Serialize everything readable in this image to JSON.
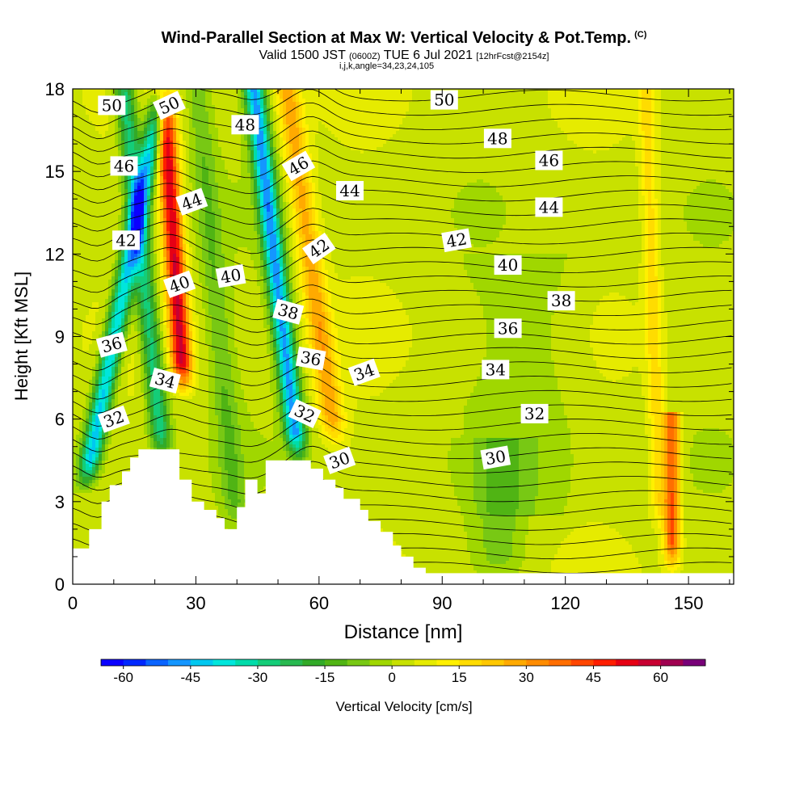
{
  "title": {
    "main": "Wind-Parallel Section at Max W: Vertical Velocity & Pot.Temp.",
    "main_unit": "(C)",
    "valid_prefix": "Valid 1500 JST",
    "valid_z": "(0600Z)",
    "valid_date": "TUE 6 Jul 2021",
    "forecast": "[12hrFcst@2154z]",
    "indices": "i,j,k,angle=34,23,24,105"
  },
  "chart_data": {
    "type": "heatmap",
    "xlabel": "Distance [nm]",
    "ylabel": "Height [Kft MSL]",
    "xlim": [
      0,
      161
    ],
    "ylim": [
      0,
      18
    ],
    "x_ticks": [
      0,
      30,
      60,
      90,
      120,
      150
    ],
    "y_ticks": [
      0,
      3,
      6,
      9,
      12,
      15,
      18
    ],
    "colorbar": {
      "label": "Vertical Velocity [cm/s]",
      "ticks": [
        -60,
        -45,
        -30,
        -15,
        0,
        15,
        30,
        45,
        60
      ],
      "min": -65,
      "max": 70,
      "step": 5,
      "colors": [
        "#0a00ff",
        "#0028ff",
        "#0a64ff",
        "#1496ff",
        "#00c8f0",
        "#00e6dc",
        "#00dcaa",
        "#14cd78",
        "#28b950",
        "#32aa28",
        "#50b414",
        "#78c814",
        "#a0d700",
        "#c8e100",
        "#e6eb00",
        "#fff000",
        "#ffdc00",
        "#ffc800",
        "#ffaa00",
        "#ff8c00",
        "#ff6e00",
        "#ff4600",
        "#ff1e00",
        "#e60014",
        "#c80032",
        "#a00050",
        "#780078"
      ]
    },
    "w_features": [
      {
        "center_nm": 3,
        "bottom_kft": 3.5,
        "top_kft": 18,
        "peak_cm_s": -45,
        "width_nm": 5,
        "tilt_nm_per_kft": 1.3
      },
      {
        "center_nm": 22,
        "bottom_kft": 4.5,
        "top_kft": 18,
        "peak_cm_s": -32,
        "width_nm": 5,
        "tilt_nm_per_kft": -0.7
      },
      {
        "center_nm": 27,
        "bottom_kft": 7,
        "top_kft": 18,
        "peak_cm_s": 52,
        "width_nm": 5,
        "tilt_nm_per_kft": -0.45
      },
      {
        "center_nm": 55,
        "bottom_kft": 4.5,
        "top_kft": 18,
        "peak_cm_s": -50,
        "width_nm": 5,
        "tilt_nm_per_kft": -0.8
      },
      {
        "center_nm": 64,
        "bottom_kft": 5,
        "top_kft": 18,
        "peak_cm_s": 25,
        "width_nm": 6,
        "tilt_nm_per_kft": -0.9
      },
      {
        "center_nm": 146,
        "bottom_kft": 0.5,
        "top_kft": 6,
        "peak_cm_s": 38,
        "width_nm": 4,
        "tilt_nm_per_kft": 0
      },
      {
        "center_nm": 143,
        "bottom_kft": 2,
        "top_kft": 18,
        "peak_cm_s": 15,
        "width_nm": 4,
        "tilt_nm_per_kft": -0.2
      },
      {
        "center_nm": 40,
        "bottom_kft": 2,
        "top_kft": 18,
        "peak_cm_s": -12,
        "width_nm": 6,
        "tilt_nm_per_kft": -0.6
      },
      {
        "center_nm": 104,
        "bottom_kft": 0,
        "top_kft": 5,
        "peak_cm_s": -10,
        "width_nm": 12,
        "tilt_nm_per_kft": 0
      }
    ],
    "terrain_profile_kft": [
      [
        0,
        1.3
      ],
      [
        4,
        1.3
      ],
      [
        4,
        2
      ],
      [
        7,
        2
      ],
      [
        7,
        3
      ],
      [
        9,
        3
      ],
      [
        9,
        3.6
      ],
      [
        12,
        3.6
      ],
      [
        12,
        4.1
      ],
      [
        14,
        4.1
      ],
      [
        14,
        4.6
      ],
      [
        16,
        4.6
      ],
      [
        16,
        4.9
      ],
      [
        26,
        4.9
      ],
      [
        26,
        3.8
      ],
      [
        29,
        3.8
      ],
      [
        29,
        3.0
      ],
      [
        32,
        3.0
      ],
      [
        32,
        2.7
      ],
      [
        35,
        2.7
      ],
      [
        35,
        2.4
      ],
      [
        37,
        2.4
      ],
      [
        37,
        2.0
      ],
      [
        40,
        2.0
      ],
      [
        40,
        2.8
      ],
      [
        42,
        2.8
      ],
      [
        42,
        3.8
      ],
      [
        45,
        3.8
      ],
      [
        45,
        3.3
      ],
      [
        47,
        3.3
      ],
      [
        47,
        4.5
      ],
      [
        58,
        4.5
      ],
      [
        58,
        4.2
      ],
      [
        61,
        4.2
      ],
      [
        61,
        3.8
      ],
      [
        64,
        3.8
      ],
      [
        64,
        3.5
      ],
      [
        66,
        3.5
      ],
      [
        66,
        3.1
      ],
      [
        70,
        3.1
      ],
      [
        70,
        2.7
      ],
      [
        72,
        2.7
      ],
      [
        72,
        2.3
      ],
      [
        75,
        2.3
      ],
      [
        75,
        1.9
      ],
      [
        78,
        1.9
      ],
      [
        78,
        1.4
      ],
      [
        80,
        1.4
      ],
      [
        80,
        1.0
      ],
      [
        83,
        1.0
      ],
      [
        83,
        0.6
      ],
      [
        86,
        0.6
      ],
      [
        86,
        0.4
      ],
      [
        161,
        0.4
      ]
    ],
    "contour_labels": [
      {
        "text": "50",
        "x": 9.5,
        "y": 17.4,
        "angle": 0
      },
      {
        "text": "50",
        "x": 23.5,
        "y": 17.4,
        "angle": -25
      },
      {
        "text": "48",
        "x": 42,
        "y": 16.7,
        "angle": 0
      },
      {
        "text": "50",
        "x": 90.5,
        "y": 17.6,
        "angle": 0
      },
      {
        "text": "48",
        "x": 103.5,
        "y": 16.2,
        "angle": 0
      },
      {
        "text": "46",
        "x": 12.5,
        "y": 15.2,
        "angle": 0
      },
      {
        "text": "46",
        "x": 55,
        "y": 15.2,
        "angle": -30
      },
      {
        "text": "46",
        "x": 116,
        "y": 15.4,
        "angle": 0
      },
      {
        "text": "44",
        "x": 29,
        "y": 13.9,
        "angle": -20
      },
      {
        "text": "44",
        "x": 67.5,
        "y": 14.3,
        "angle": 0
      },
      {
        "text": "44",
        "x": 116,
        "y": 13.7,
        "angle": 0
      },
      {
        "text": "42",
        "x": 13,
        "y": 12.5,
        "angle": 0
      },
      {
        "text": "42",
        "x": 60,
        "y": 12.2,
        "angle": -35
      },
      {
        "text": "42",
        "x": 93.5,
        "y": 12.5,
        "angle": -10
      },
      {
        "text": "40",
        "x": 26,
        "y": 10.9,
        "angle": -20
      },
      {
        "text": "40",
        "x": 38.5,
        "y": 11.2,
        "angle": -10
      },
      {
        "text": "40",
        "x": 106,
        "y": 11.6,
        "angle": 0
      },
      {
        "text": "38",
        "x": 52.5,
        "y": 9.9,
        "angle": 15
      },
      {
        "text": "38",
        "x": 119,
        "y": 10.3,
        "angle": 0
      },
      {
        "text": "36",
        "x": 9.5,
        "y": 8.7,
        "angle": -15
      },
      {
        "text": "36",
        "x": 58,
        "y": 8.2,
        "angle": 10
      },
      {
        "text": "36",
        "x": 106,
        "y": 9.3,
        "angle": 0
      },
      {
        "text": "34",
        "x": 22.5,
        "y": 7.4,
        "angle": 15
      },
      {
        "text": "34",
        "x": 71,
        "y": 7.7,
        "angle": -20
      },
      {
        "text": "34",
        "x": 103,
        "y": 7.8,
        "angle": 0
      },
      {
        "text": "32",
        "x": 10,
        "y": 6.0,
        "angle": -20
      },
      {
        "text": "32",
        "x": 56.5,
        "y": 6.2,
        "angle": 25
      },
      {
        "text": "32",
        "x": 112.5,
        "y": 6.2,
        "angle": 0
      },
      {
        "text": "30",
        "x": 65,
        "y": 4.5,
        "angle": -20
      },
      {
        "text": "30",
        "x": 103,
        "y": 4.6,
        "angle": -10
      }
    ]
  }
}
